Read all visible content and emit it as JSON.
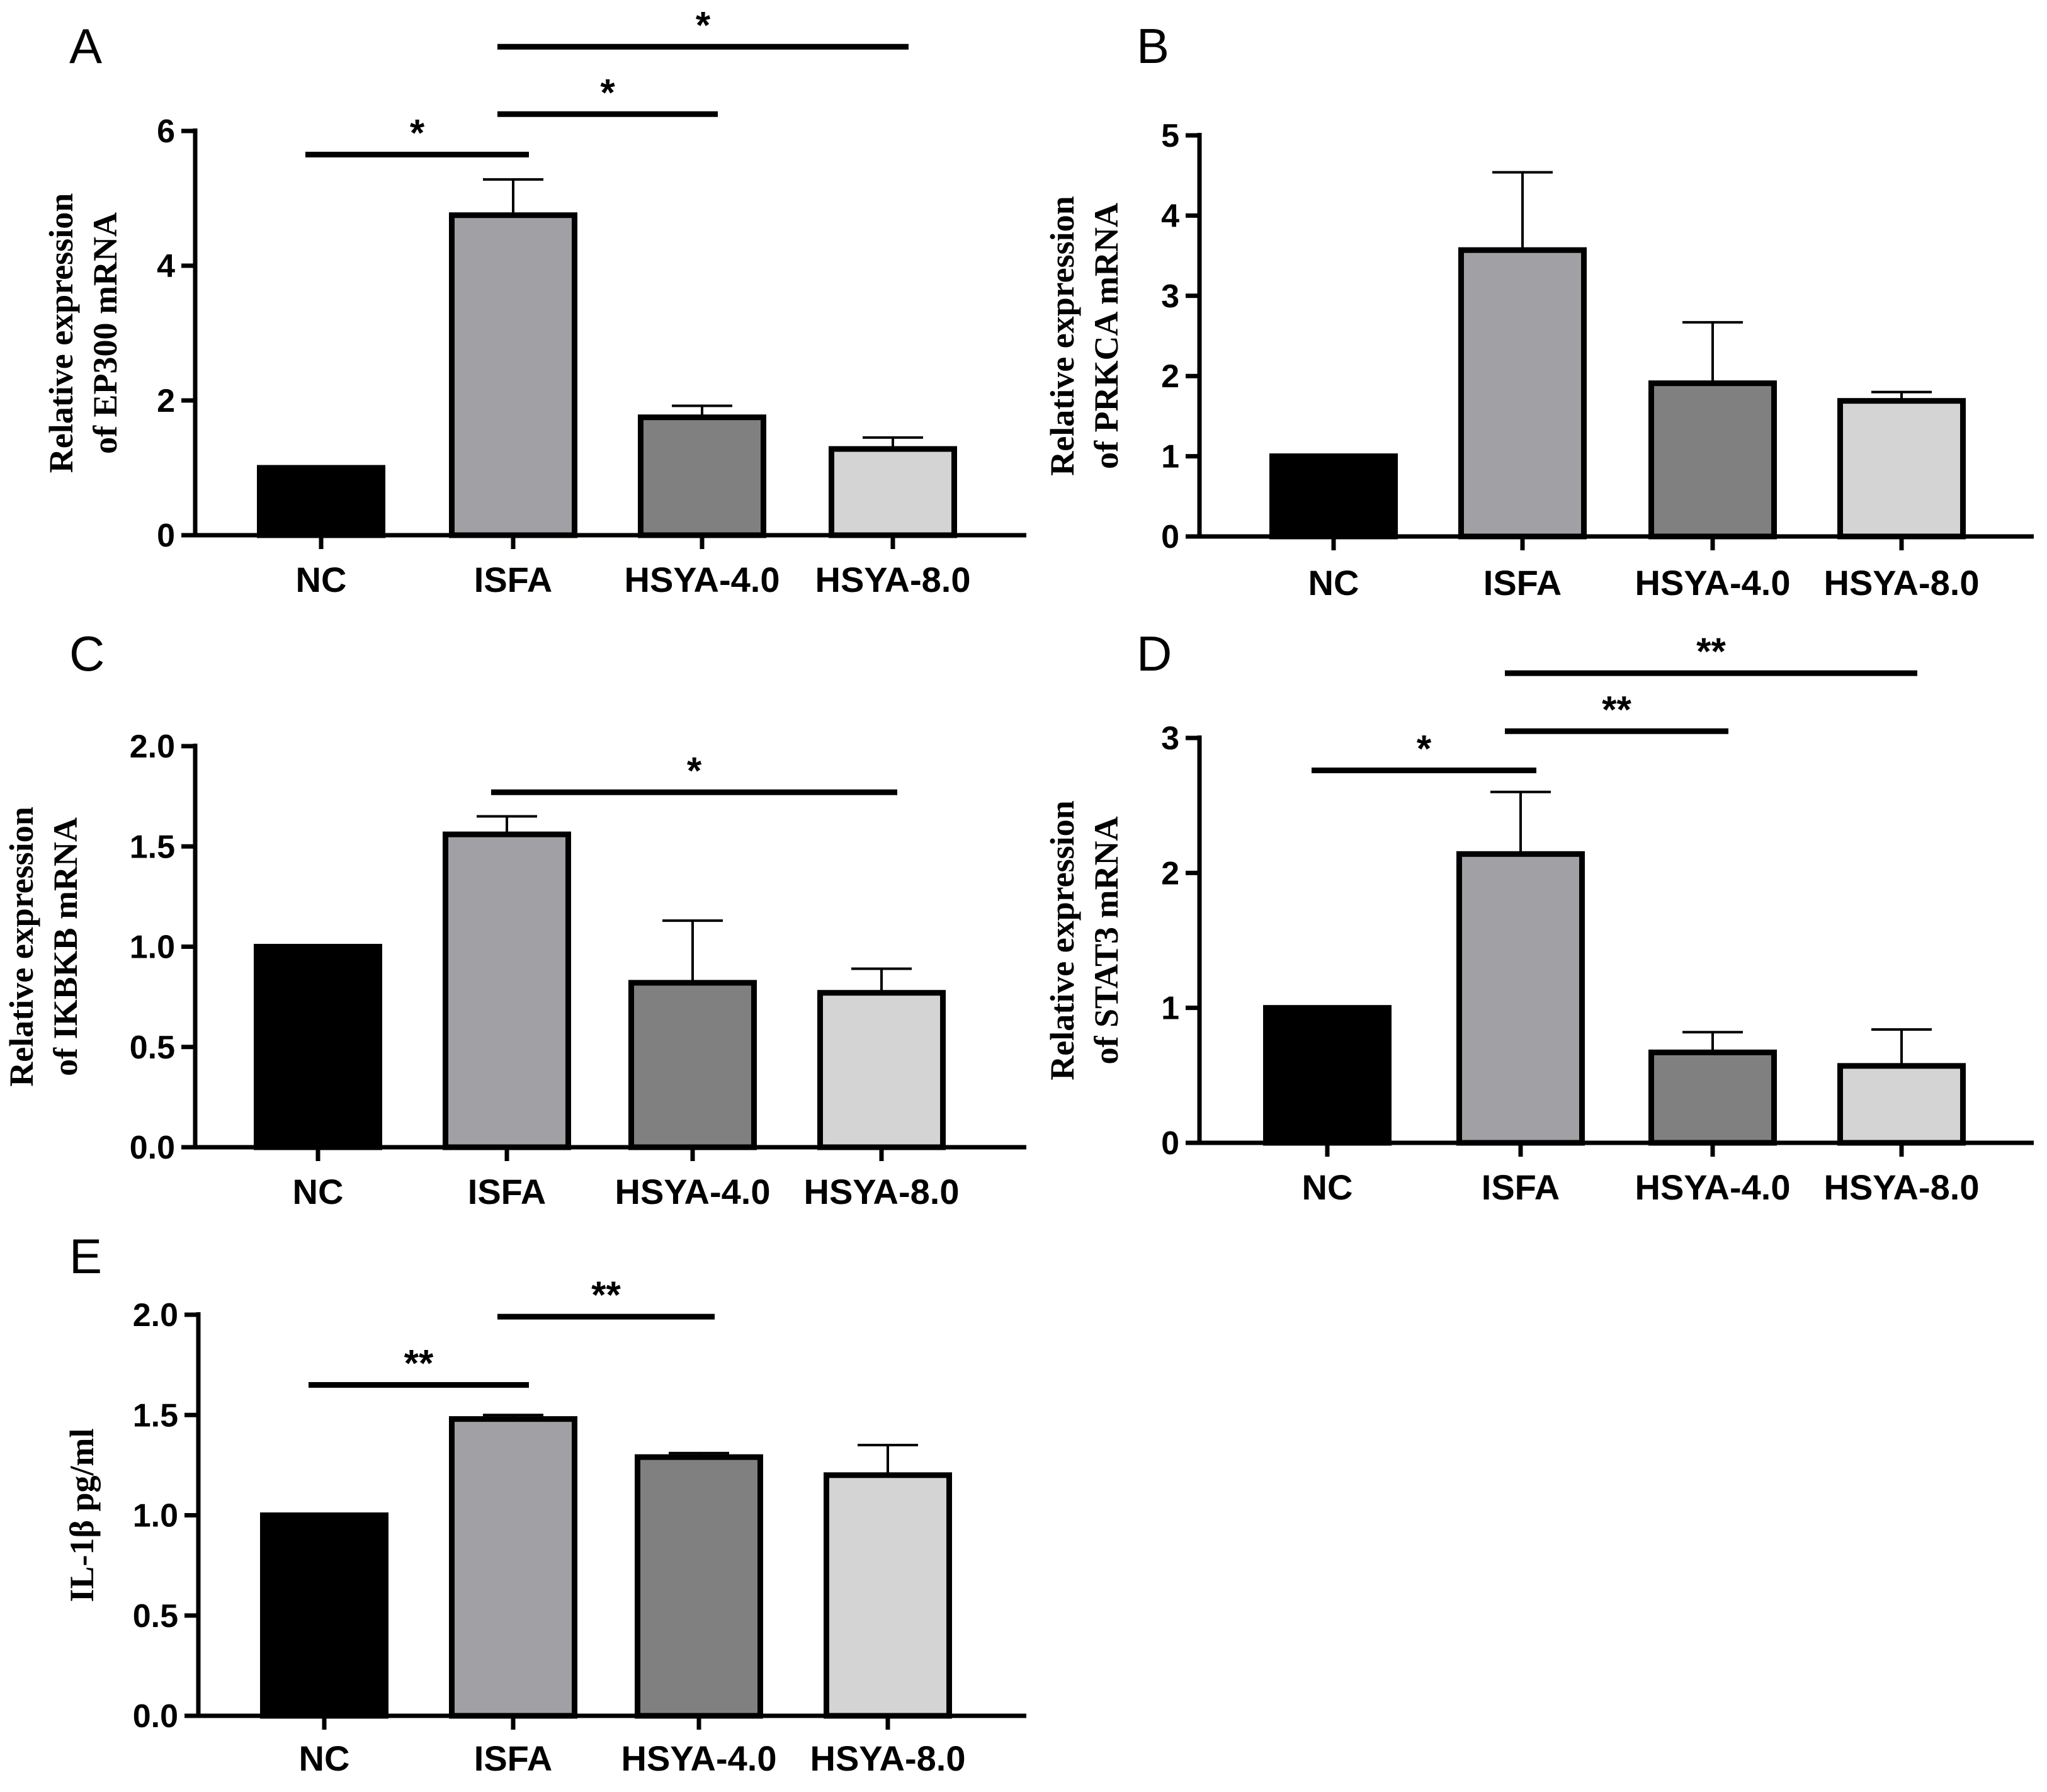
{
  "chart_data": [
    {
      "panel": "A",
      "type": "bar",
      "ylabel_lines": [
        "Relative expression",
        "of EP300 mRNA"
      ],
      "categories": [
        "NC",
        "ISFA",
        "HSYA-4.0",
        "HSYA-8.0"
      ],
      "values": [
        1.0,
        4.75,
        1.75,
        1.28
      ],
      "errors": [
        0.0,
        0.53,
        0.17,
        0.17
      ],
      "ylim": [
        0,
        6
      ],
      "yticks": [
        0,
        2,
        4,
        6
      ],
      "yticklabels": [
        "0",
        "2",
        "4",
        "6"
      ],
      "significance": [
        {
          "from": 0,
          "to": 1,
          "label": "*",
          "y": 5.65
        },
        {
          "from": 1,
          "to": 2,
          "label": "*",
          "y": 6.25
        },
        {
          "from": 1,
          "to": 3,
          "label": "*",
          "y": 7.25
        }
      ]
    },
    {
      "panel": "B",
      "type": "bar",
      "ylabel_lines": [
        "Relative expression",
        "of PRKCA mRNA"
      ],
      "categories": [
        "NC",
        "ISFA",
        "HSYA-4.0",
        "HSYA-8.0"
      ],
      "values": [
        1.0,
        3.57,
        1.91,
        1.69
      ],
      "errors": [
        0.0,
        0.97,
        0.76,
        0.11
      ],
      "ylim": [
        0,
        5
      ],
      "yticks": [
        0,
        1,
        2,
        3,
        4,
        5
      ],
      "yticklabels": [
        "0",
        "1",
        "2",
        "3",
        "4",
        "5"
      ],
      "significance": []
    },
    {
      "panel": "C",
      "type": "bar",
      "ylabel_lines": [
        "Relative expression",
        "of IKBKB mRNA"
      ],
      "categories": [
        "NC",
        "ISFA",
        "HSYA-4.0",
        "HSYA-8.0"
      ],
      "values": [
        1.0,
        1.56,
        0.82,
        0.77
      ],
      "errors": [
        0.0,
        0.09,
        0.31,
        0.12
      ],
      "ylim": [
        0,
        2.0
      ],
      "yticks": [
        0,
        0.5,
        1.0,
        1.5,
        2.0
      ],
      "yticklabels": [
        "0.0",
        "0.5",
        "1.0",
        "1.5",
        "2.0"
      ],
      "significance": [
        {
          "from": 1,
          "to": 3,
          "label": "*",
          "y": 1.77
        }
      ]
    },
    {
      "panel": "D",
      "type": "bar",
      "ylabel_lines": [
        "Relative expression",
        "of STAT3 mRNA"
      ],
      "categories": [
        "NC",
        "ISFA",
        "HSYA-4.0",
        "HSYA-8.0"
      ],
      "values": [
        1.0,
        2.14,
        0.67,
        0.57
      ],
      "errors": [
        0.0,
        0.46,
        0.15,
        0.27
      ],
      "ylim": [
        0,
        3
      ],
      "yticks": [
        0,
        1,
        2,
        3
      ],
      "yticklabels": [
        "0",
        "1",
        "2",
        "3"
      ],
      "significance": [
        {
          "from": 0,
          "to": 1,
          "label": "*",
          "y": 2.76
        },
        {
          "from": 1,
          "to": 2,
          "label": "**",
          "y": 3.05
        },
        {
          "from": 1,
          "to": 3,
          "label": "**",
          "y": 3.48
        }
      ]
    },
    {
      "panel": "E",
      "type": "bar",
      "ylabel_lines": [
        "IL-1β pg/ml"
      ],
      "categories": [
        "NC",
        "ISFA",
        "HSYA-4.0",
        "HSYA-8.0"
      ],
      "values": [
        1.0,
        1.48,
        1.29,
        1.2
      ],
      "errors": [
        0.0,
        0.02,
        0.02,
        0.15
      ],
      "ylim": [
        0,
        2.0
      ],
      "yticks": [
        0,
        0.5,
        1.0,
        1.5,
        2.0
      ],
      "yticklabels": [
        "0.0",
        "0.5",
        "1.0",
        "1.5",
        "2.0"
      ],
      "significance": [
        {
          "from": 0,
          "to": 1,
          "label": "**",
          "y": 1.65
        },
        {
          "from": 1,
          "to": 2,
          "label": "**",
          "y": 1.99
        }
      ]
    }
  ],
  "colors": {
    "bars": [
      "#000000",
      "#a0a0a5",
      "#808080",
      "#d4d4d4"
    ],
    "axis": "#000000"
  }
}
